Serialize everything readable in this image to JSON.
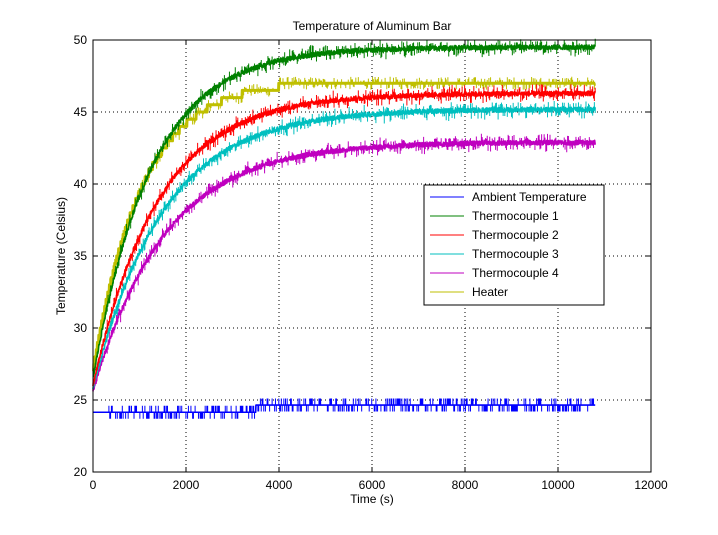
{
  "chart_data": {
    "type": "line",
    "title": "Temperature of Aluminum Bar",
    "xlabel": "Time (s)",
    "ylabel": "Temperature (Celsius)",
    "xlim": [
      0,
      12000
    ],
    "ylim": [
      20,
      50
    ],
    "xticks": [
      0,
      2000,
      4000,
      6000,
      8000,
      10000,
      12000
    ],
    "yticks": [
      20,
      25,
      30,
      35,
      40,
      45,
      50
    ],
    "grid": true,
    "legend_position": "center-right",
    "x_end": 10800,
    "series": [
      {
        "name": "Ambient Temperature",
        "color": "#0000ff",
        "start": 24.2,
        "end": 24.6,
        "tau": 3000,
        "style": "quantized",
        "noise": 0.35
      },
      {
        "name": "Thermocouple 1",
        "color": "#008000",
        "start": 26.5,
        "end": 49.5,
        "tau": 1250,
        "style": "noisy",
        "noise": 0.55
      },
      {
        "name": "Thermocouple 2",
        "color": "#ff0000",
        "start": 26.0,
        "end": 46.3,
        "tau": 1400,
        "style": "noisy",
        "noise": 0.55
      },
      {
        "name": "Thermocouple 3",
        "color": "#00bfbf",
        "start": 25.8,
        "end": 45.2,
        "tau": 1500,
        "style": "noisy",
        "noise": 0.55
      },
      {
        "name": "Thermocouple 4",
        "color": "#bf00bf",
        "start": 25.6,
        "end": 42.9,
        "tau": 1550,
        "style": "noisy",
        "noise": 0.55
      },
      {
        "name": "Heater",
        "color": "#bfbf00",
        "start": 27.0,
        "end": 47.2,
        "tau": 1050,
        "style": "stepped",
        "noise": 0.45
      }
    ],
    "legend_bg": "#ffffff",
    "axis_color": "#000000"
  }
}
